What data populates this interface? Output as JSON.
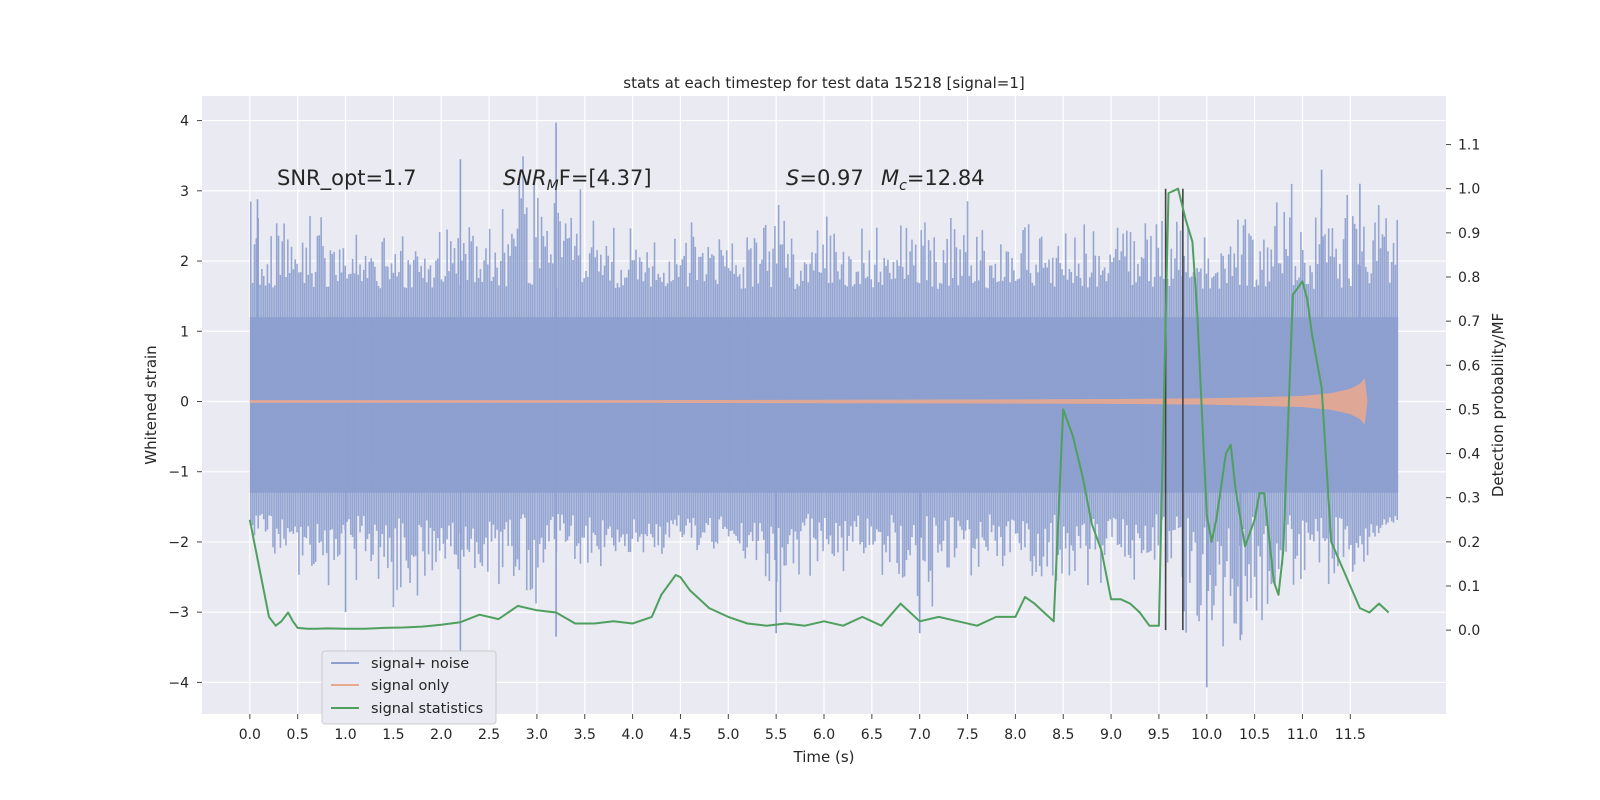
{
  "chart_data": {
    "type": "line",
    "title": "stats at each timestep for test data 15218 [signal=1]",
    "xlabel": "Time (s)",
    "ylabel_left": "Whitened strain",
    "ylabel_right": "Detection probability/MF",
    "xlim": [
      -0.5,
      12.5
    ],
    "ylim_left": [
      -4.45,
      4.35
    ],
    "ylim_right": [
      -0.19,
      1.21
    ],
    "x_ticks": [
      0.0,
      0.5,
      1.0,
      1.5,
      2.0,
      2.5,
      3.0,
      3.5,
      4.0,
      4.5,
      5.0,
      5.5,
      6.0,
      6.5,
      7.0,
      7.5,
      8.0,
      8.5,
      9.0,
      9.5,
      10.0,
      10.5,
      11.0,
      11.5
    ],
    "x_tick_labels": [
      "0.0",
      "0.5",
      "1.0",
      "1.5",
      "2.0",
      "2.5",
      "3.0",
      "3.5",
      "4.0",
      "4.5",
      "5.0",
      "5.5",
      "6.0",
      "6.5",
      "7.0",
      "7.5",
      "8.0",
      "8.5",
      "9.0",
      "9.5",
      "10.0",
      "10.5",
      "11.0",
      "11.5"
    ],
    "y_left_ticks": [
      -4,
      -3,
      -2,
      -1,
      0,
      1,
      2,
      3,
      4
    ],
    "y_left_tick_labels": [
      "−4",
      "−3",
      "−2",
      "−1",
      "0",
      "1",
      "2",
      "3",
      "4"
    ],
    "y_right_ticks": [
      0.0,
      0.1,
      0.2,
      0.3,
      0.4,
      0.5,
      0.6,
      0.7,
      0.8,
      0.9,
      1.0,
      1.1
    ],
    "y_right_tick_labels": [
      "0.0",
      "0.1",
      "0.2",
      "0.3",
      "0.4",
      "0.5",
      "0.6",
      "0.7",
      "0.8",
      "0.9",
      "1.0",
      "1.1"
    ],
    "grid": true,
    "legend_position": "lower-left",
    "annotations": {
      "snr_opt": "SNR_opt=1.7",
      "snr_mf_name": "SNR",
      "snr_mf_sub": "M",
      "snr_mf_rest": "F=[4.37]",
      "s_name": "S",
      "s_val": "=0.97",
      "mc_name": "M",
      "mc_sub": "c",
      "mc_val": "=12.84"
    },
    "vertical_lines": {
      "x": [
        9.57,
        9.75
      ],
      "y_range_right": [
        0.0,
        1.0
      ],
      "color": "#444444"
    },
    "series": [
      {
        "name": "signal+ noise",
        "color": "#8c9fcf",
        "axis": "left",
        "x_range": [
          0.0,
          12.0
        ],
        "envelope_x": [
          0.0,
          0.5,
          1.0,
          1.5,
          2.0,
          2.5,
          3.0,
          3.5,
          4.0,
          4.5,
          5.0,
          5.5,
          6.0,
          6.5,
          7.0,
          7.5,
          8.0,
          8.5,
          9.0,
          9.5,
          10.0,
          10.5,
          11.0,
          11.5,
          12.0
        ],
        "envelope_upper": [
          2.9,
          2.8,
          2.5,
          2.4,
          2.7,
          3.1,
          3.97,
          3.0,
          2.7,
          2.6,
          2.5,
          3.0,
          2.8,
          2.6,
          2.9,
          3.0,
          2.7,
          2.8,
          2.7,
          2.9,
          2.7,
          2.8,
          3.3,
          3.1,
          3.0
        ],
        "envelope_lower": [
          -2.0,
          -2.5,
          -2.8,
          -3.1,
          -2.6,
          -2.7,
          -3.3,
          -2.5,
          -2.4,
          -2.3,
          -2.2,
          -3.2,
          -2.7,
          -2.5,
          -3.3,
          -2.6,
          -2.7,
          -2.9,
          -2.6,
          -2.6,
          -4.07,
          -3.4,
          -2.8,
          -2.7,
          -1.8
        ],
        "spikes": [
          {
            "x": 2.2,
            "y": 3.45
          },
          {
            "x": 2.2,
            "y": -3.6
          },
          {
            "x": 3.2,
            "y": 3.97
          },
          {
            "x": 3.2,
            "y": -3.35
          },
          {
            "x": 1.0,
            "y": -3.0
          },
          {
            "x": 5.5,
            "y": -3.3
          },
          {
            "x": 7.0,
            "y": -3.3
          },
          {
            "x": 10.0,
            "y": -4.07
          },
          {
            "x": 10.35,
            "y": -3.4
          },
          {
            "x": 11.2,
            "y": 3.3
          },
          {
            "x": 0.08,
            "y": 2.88
          },
          {
            "x": 11.6,
            "y": 3.1
          }
        ]
      },
      {
        "name": "signal only",
        "color": "#e8a98f",
        "axis": "left",
        "x": [
          0.0,
          2.0,
          4.0,
          6.0,
          8.0,
          9.0,
          10.0,
          10.5,
          11.0,
          11.3,
          11.5,
          11.6,
          11.65,
          11.68
        ],
        "amplitude": [
          0.02,
          0.02,
          0.02,
          0.025,
          0.03,
          0.035,
          0.045,
          0.06,
          0.08,
          0.12,
          0.18,
          0.25,
          0.33,
          0.0
        ]
      },
      {
        "name": "signal statistics",
        "color": "#4f9f5f",
        "axis": "right",
        "x": [
          0.0,
          0.1,
          0.2,
          0.27,
          0.33,
          0.4,
          0.45,
          0.5,
          0.6,
          0.7,
          0.8,
          1.0,
          1.2,
          1.4,
          1.6,
          1.8,
          2.0,
          2.2,
          2.4,
          2.6,
          2.8,
          3.0,
          3.2,
          3.4,
          3.6,
          3.8,
          4.0,
          4.2,
          4.3,
          4.45,
          4.5,
          4.6,
          4.8,
          5.0,
          5.2,
          5.4,
          5.6,
          5.8,
          6.0,
          6.2,
          6.4,
          6.6,
          6.8,
          7.0,
          7.2,
          7.4,
          7.6,
          7.8,
          8.0,
          8.1,
          8.2,
          8.3,
          8.4,
          8.5,
          8.6,
          8.7,
          8.8,
          8.9,
          9.0,
          9.1,
          9.2,
          9.3,
          9.4,
          9.5,
          9.6,
          9.7,
          9.78,
          9.85,
          9.9,
          10.0,
          10.05,
          10.1,
          10.2,
          10.25,
          10.3,
          10.4,
          10.45,
          10.5,
          10.55,
          10.6,
          10.7,
          10.75,
          10.8,
          10.9,
          11.0,
          11.05,
          11.1,
          11.2,
          11.3,
          11.4,
          11.5,
          11.6,
          11.7,
          11.8,
          11.9
        ],
        "y": [
          0.25,
          0.14,
          0.03,
          0.01,
          0.02,
          0.04,
          0.02,
          0.005,
          0.003,
          0.003,
          0.004,
          0.003,
          0.003,
          0.005,
          0.006,
          0.008,
          0.012,
          0.018,
          0.035,
          0.025,
          0.055,
          0.045,
          0.04,
          0.015,
          0.015,
          0.02,
          0.015,
          0.03,
          0.08,
          0.125,
          0.12,
          0.09,
          0.05,
          0.03,
          0.015,
          0.01,
          0.015,
          0.01,
          0.02,
          0.01,
          0.03,
          0.01,
          0.06,
          0.02,
          0.03,
          0.02,
          0.01,
          0.03,
          0.03,
          0.075,
          0.06,
          0.04,
          0.02,
          0.5,
          0.44,
          0.35,
          0.24,
          0.18,
          0.07,
          0.07,
          0.06,
          0.04,
          0.01,
          0.01,
          0.99,
          1.0,
          0.93,
          0.88,
          0.72,
          0.26,
          0.2,
          0.25,
          0.4,
          0.42,
          0.32,
          0.19,
          0.22,
          0.25,
          0.31,
          0.31,
          0.11,
          0.08,
          0.18,
          0.76,
          0.79,
          0.75,
          0.67,
          0.55,
          0.2,
          0.15,
          0.1,
          0.05,
          0.04,
          0.06,
          0.04
        ]
      }
    ]
  }
}
